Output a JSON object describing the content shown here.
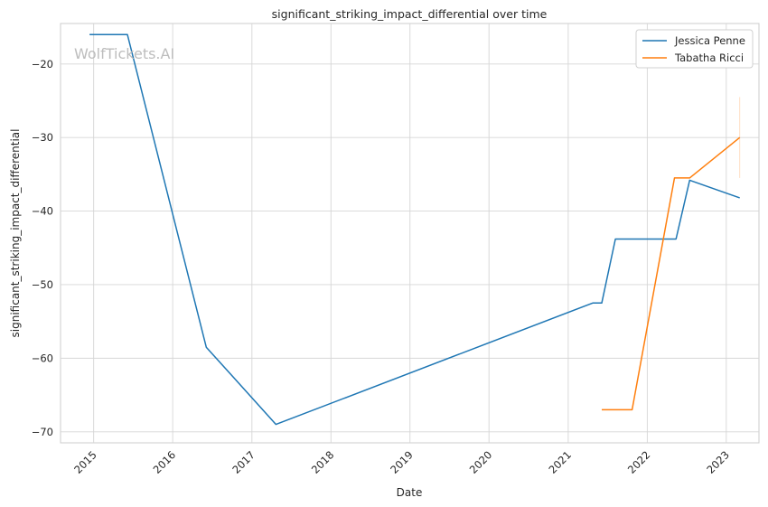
{
  "chart_data": {
    "type": "line",
    "title": "significant_striking_impact_differential over time",
    "xlabel": "Date",
    "ylabel": "significant_striking_impact_differential",
    "watermark": "WolfTickets.AI",
    "xlim": [
      "2014-08-01",
      "2023-06-01"
    ],
    "ylim": [
      -71.5,
      -14.5
    ],
    "x_ticks": [
      "2015",
      "2016",
      "2017",
      "2018",
      "2019",
      "2020",
      "2021",
      "2022",
      "2023"
    ],
    "y_ticks": [
      -20,
      -30,
      -40,
      -50,
      -60,
      -70
    ],
    "grid": true,
    "legend_position": "top-right",
    "series": [
      {
        "name": "Jessica Penne",
        "color": "#1f77b4",
        "points": [
          {
            "x": "2014-12-13",
            "y": -16.0
          },
          {
            "x": "2015-06-06",
            "y": -16.0
          },
          {
            "x": "2016-06-04",
            "y": -58.5
          },
          {
            "x": "2017-04-22",
            "y": -69.0
          },
          {
            "x": "2021-04-24",
            "y": -52.5
          },
          {
            "x": "2021-06-05",
            "y": -52.5
          },
          {
            "x": "2021-08-07",
            "y": -43.8
          },
          {
            "x": "2022-05-14",
            "y": -43.8
          },
          {
            "x": "2022-07-16",
            "y": -35.8
          },
          {
            "x": "2023-03-04",
            "y": -38.2
          }
        ]
      },
      {
        "name": "Tabatha Ricci",
        "color": "#ff7f0e",
        "points": [
          {
            "x": "2021-06-05",
            "y": -67.0
          },
          {
            "x": "2021-10-23",
            "y": -67.0
          },
          {
            "x": "2022-05-07",
            "y": -35.5
          },
          {
            "x": "2022-07-16",
            "y": -35.5
          },
          {
            "x": "2023-03-04",
            "y": -30.0
          }
        ],
        "range_bar": {
          "x": "2023-03-04",
          "y_low": -35.5,
          "y_high": -24.5
        }
      }
    ]
  }
}
